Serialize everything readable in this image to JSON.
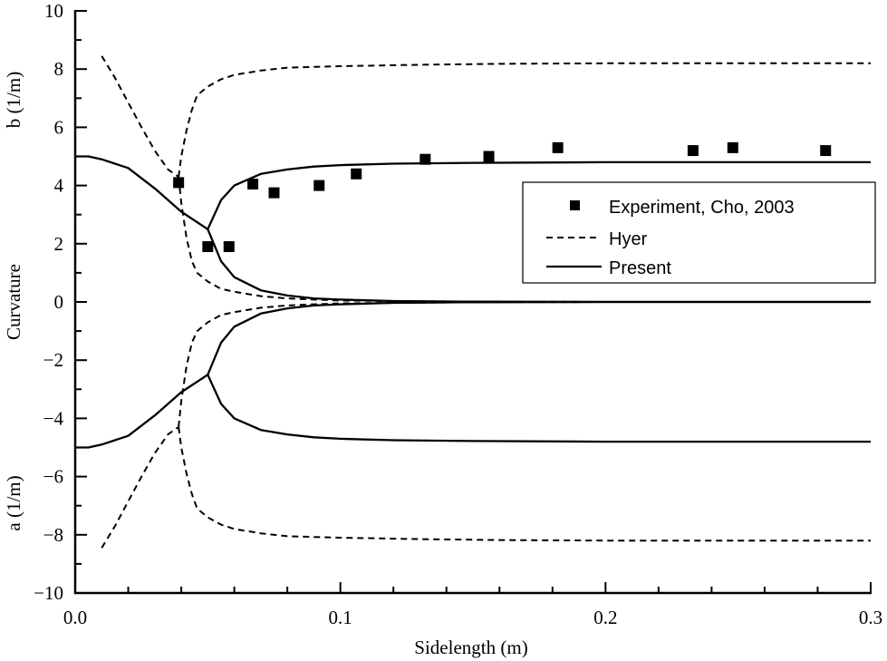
{
  "chart_data": {
    "type": "line",
    "title": "",
    "xlabel": "Sidelength (m)",
    "ylabel": "Curvature",
    "ylabel_top": "b (1/m)",
    "ylabel_bottom": "a (1/m)",
    "xlim": [
      0.0,
      0.3
    ],
    "ylim": [
      -10,
      10
    ],
    "xticks": [
      "0.0",
      "0.1",
      "0.2",
      "0.3"
    ],
    "xtick_values": [
      0.0,
      0.1,
      0.2,
      0.3
    ],
    "yticks": [
      "10",
      "8",
      "6",
      "4",
      "2",
      "0",
      "-2",
      "-4",
      "-6",
      "-8",
      "-10"
    ],
    "ytick_values": [
      10,
      8,
      6,
      4,
      2,
      0,
      -2,
      -4,
      -6,
      -8,
      -10
    ],
    "grid": false,
    "legend_position": "right-middle",
    "legend": [
      {
        "label": "Experiment, Cho, 2003",
        "style": "square-marker"
      },
      {
        "label": "Hyer",
        "style": "dashed"
      },
      {
        "label": "Present",
        "style": "solid"
      }
    ],
    "series": [
      {
        "name": "Experiment, Cho, 2003",
        "kind": "scatter",
        "x": [
          0.039,
          0.05,
          0.058,
          0.067,
          0.075,
          0.092,
          0.106,
          0.132,
          0.156,
          0.182,
          0.233,
          0.248,
          0.283
        ],
        "y": [
          4.1,
          1.9,
          1.9,
          4.05,
          3.75,
          4.0,
          4.4,
          4.9,
          5.0,
          5.3,
          5.2,
          5.3,
          5.2
        ]
      },
      {
        "name": "Hyer (b, upper branch 1)",
        "kind": "dashed",
        "x": [
          0.01,
          0.015,
          0.02,
          0.025,
          0.03,
          0.035,
          0.039
        ],
        "y": [
          8.45,
          7.7,
          6.85,
          6.0,
          5.2,
          4.55,
          4.3
        ]
      },
      {
        "name": "Hyer (b, stable branch)",
        "kind": "dashed",
        "x": [
          0.039,
          0.04,
          0.042,
          0.044,
          0.046,
          0.05,
          0.055,
          0.06,
          0.07,
          0.08,
          0.1,
          0.13,
          0.16,
          0.2,
          0.25,
          0.3
        ],
        "y": [
          4.3,
          5.0,
          5.9,
          6.6,
          7.1,
          7.4,
          7.65,
          7.8,
          7.95,
          8.05,
          8.1,
          8.15,
          8.18,
          8.2,
          8.2,
          8.2
        ]
      },
      {
        "name": "Hyer (b, lower branch)",
        "kind": "dashed",
        "x": [
          0.039,
          0.04,
          0.042,
          0.044,
          0.046,
          0.05,
          0.055,
          0.06,
          0.07,
          0.08,
          0.09,
          0.1,
          0.12,
          0.15,
          0.2,
          0.3
        ],
        "y": [
          4.3,
          3.4,
          2.2,
          1.4,
          1.0,
          0.7,
          0.45,
          0.35,
          0.2,
          0.12,
          0.08,
          0.05,
          0.03,
          0.01,
          0.0,
          0.0
        ]
      },
      {
        "name": "Hyer (a, lower branch 1)",
        "kind": "dashed",
        "x": [
          0.01,
          0.015,
          0.02,
          0.025,
          0.03,
          0.035,
          0.039
        ],
        "y": [
          -8.45,
          -7.7,
          -6.85,
          -6.0,
          -5.2,
          -4.55,
          -4.3
        ]
      },
      {
        "name": "Hyer (a, stable branch)",
        "kind": "dashed",
        "x": [
          0.039,
          0.04,
          0.042,
          0.044,
          0.046,
          0.05,
          0.055,
          0.06,
          0.07,
          0.08,
          0.1,
          0.13,
          0.16,
          0.2,
          0.25,
          0.3
        ],
        "y": [
          -4.3,
          -5.0,
          -5.9,
          -6.6,
          -7.1,
          -7.4,
          -7.65,
          -7.8,
          -7.95,
          -8.05,
          -8.1,
          -8.15,
          -8.18,
          -8.2,
          -8.2,
          -8.2
        ]
      },
      {
        "name": "Hyer (a, upper branch)",
        "kind": "dashed",
        "x": [
          0.039,
          0.04,
          0.042,
          0.044,
          0.046,
          0.05,
          0.055,
          0.06,
          0.07,
          0.08,
          0.09,
          0.1,
          0.12,
          0.15,
          0.2,
          0.3
        ],
        "y": [
          -4.3,
          -3.4,
          -2.2,
          -1.4,
          -1.0,
          -0.7,
          -0.45,
          -0.35,
          -0.2,
          -0.12,
          -0.08,
          -0.05,
          -0.03,
          -0.01,
          0.0,
          0.0
        ]
      },
      {
        "name": "Present (b, pre-bifurcation)",
        "kind": "solid",
        "x": [
          0.0,
          0.005,
          0.01,
          0.02,
          0.03,
          0.04,
          0.05
        ],
        "y": [
          5.0,
          5.0,
          4.9,
          4.6,
          3.9,
          3.1,
          2.5
        ]
      },
      {
        "name": "Present (b, stable branch)",
        "kind": "solid",
        "x": [
          0.05,
          0.055,
          0.06,
          0.07,
          0.08,
          0.09,
          0.1,
          0.12,
          0.15,
          0.2,
          0.25,
          0.3
        ],
        "y": [
          2.5,
          3.5,
          4.0,
          4.4,
          4.55,
          4.65,
          4.7,
          4.75,
          4.78,
          4.8,
          4.8,
          4.8
        ]
      },
      {
        "name": "Present (b, decaying branch)",
        "kind": "solid",
        "x": [
          0.05,
          0.055,
          0.06,
          0.07,
          0.08,
          0.09,
          0.1,
          0.12,
          0.15,
          0.2,
          0.3
        ],
        "y": [
          2.5,
          1.4,
          0.85,
          0.4,
          0.22,
          0.12,
          0.08,
          0.03,
          0.01,
          0.0,
          0.0
        ]
      },
      {
        "name": "Present (a, pre-bifurcation)",
        "kind": "solid",
        "x": [
          0.0,
          0.005,
          0.01,
          0.02,
          0.03,
          0.04,
          0.05
        ],
        "y": [
          -5.0,
          -5.0,
          -4.9,
          -4.6,
          -3.9,
          -3.1,
          -2.5
        ]
      },
      {
        "name": "Present (a, stable branch)",
        "kind": "solid",
        "x": [
          0.05,
          0.055,
          0.06,
          0.07,
          0.08,
          0.09,
          0.1,
          0.12,
          0.15,
          0.2,
          0.25,
          0.3
        ],
        "y": [
          -2.5,
          -3.5,
          -4.0,
          -4.4,
          -4.55,
          -4.65,
          -4.7,
          -4.75,
          -4.78,
          -4.8,
          -4.8,
          -4.8
        ]
      },
      {
        "name": "Present (a, decaying branch)",
        "kind": "solid",
        "x": [
          0.05,
          0.055,
          0.06,
          0.07,
          0.08,
          0.09,
          0.1,
          0.12,
          0.15,
          0.2,
          0.3
        ],
        "y": [
          -2.5,
          -1.4,
          -0.85,
          -0.4,
          -0.22,
          -0.12,
          -0.08,
          -0.03,
          -0.01,
          0.0,
          0.0
        ]
      }
    ]
  }
}
